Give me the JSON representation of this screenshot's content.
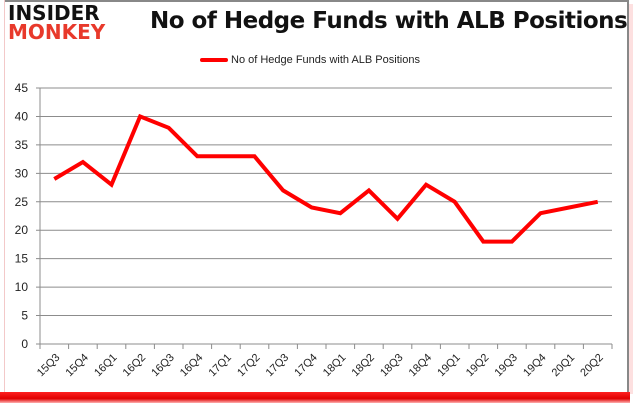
{
  "logo": {
    "line1": "INSIDER",
    "line2": "MONKEY"
  },
  "chart_data": {
    "type": "line",
    "title": "No of Hedge Funds with ALB Positions",
    "xlabel": "",
    "ylabel": "",
    "categories": [
      "15Q3",
      "15Q4",
      "16Q1",
      "16Q2",
      "16Q3",
      "16Q4",
      "17Q1",
      "17Q2",
      "17Q3",
      "17Q4",
      "18Q1",
      "18Q2",
      "18Q3",
      "18Q4",
      "19Q1",
      "19Q2",
      "19Q3",
      "19Q4",
      "20Q1",
      "20Q2"
    ],
    "series": [
      {
        "name": "No of Hedge Funds with ALB Positions",
        "color": "#ff0000",
        "values": [
          29,
          32,
          28,
          40,
          38,
          33,
          33,
          33,
          27,
          24,
          23,
          27,
          22,
          28,
          25,
          18,
          18,
          23,
          24,
          25
        ]
      }
    ],
    "ylim": [
      0,
      45
    ],
    "yticks": [
      0,
      5,
      10,
      15,
      20,
      25,
      30,
      35,
      40,
      45
    ],
    "grid": true,
    "legend_position": "top"
  }
}
